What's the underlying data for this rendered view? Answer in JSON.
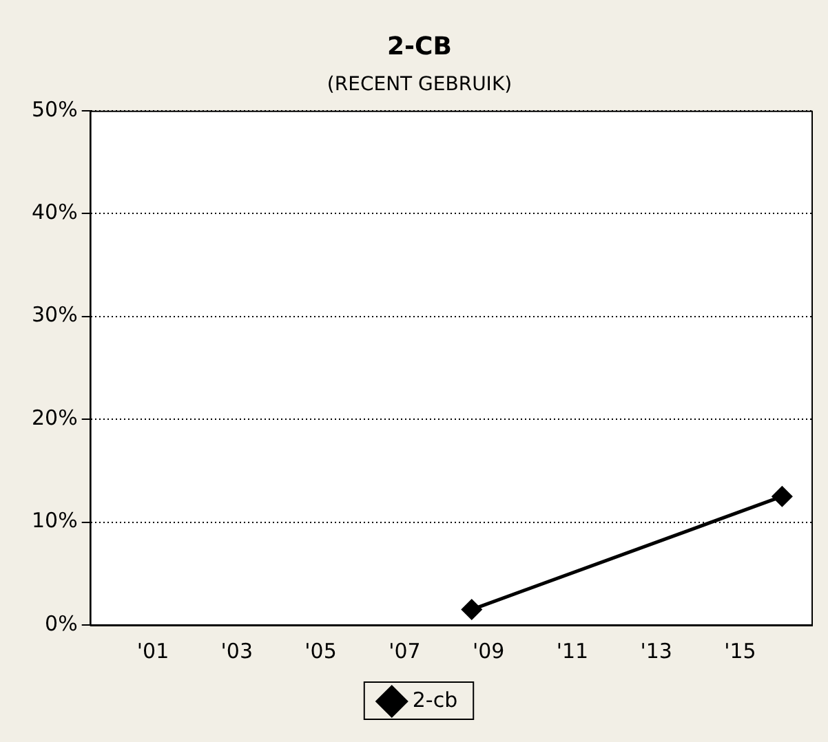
{
  "chart_data": {
    "type": "line",
    "title": "2-CB",
    "subtitle": "(RECENT GEBRUIK)",
    "x": [
      2008.6,
      2016.0
    ],
    "series": [
      {
        "name": "2-cb",
        "color": "#000000",
        "values": [
          1.5,
          12.5
        ]
      }
    ],
    "xlim": [
      1999.5,
      2016.7
    ],
    "xticks": [
      {
        "value": 2001,
        "label": "'01"
      },
      {
        "value": 2003,
        "label": "'03"
      },
      {
        "value": 2005,
        "label": "'05"
      },
      {
        "value": 2007,
        "label": "'07"
      },
      {
        "value": 2009,
        "label": "'09"
      },
      {
        "value": 2011,
        "label": "'11"
      },
      {
        "value": 2013,
        "label": "'13"
      },
      {
        "value": 2015,
        "label": "'15"
      }
    ],
    "ylim": [
      0,
      50
    ],
    "yticks": [
      {
        "value": 0,
        "label": "0%"
      },
      {
        "value": 10,
        "label": "10%"
      },
      {
        "value": 20,
        "label": "20%"
      },
      {
        "value": 30,
        "label": "30%"
      },
      {
        "value": 40,
        "label": "40%"
      },
      {
        "value": 50,
        "label": "50%"
      }
    ],
    "grid": "y",
    "legend": "bottom",
    "marker": "diamond",
    "line_style": "solid"
  }
}
